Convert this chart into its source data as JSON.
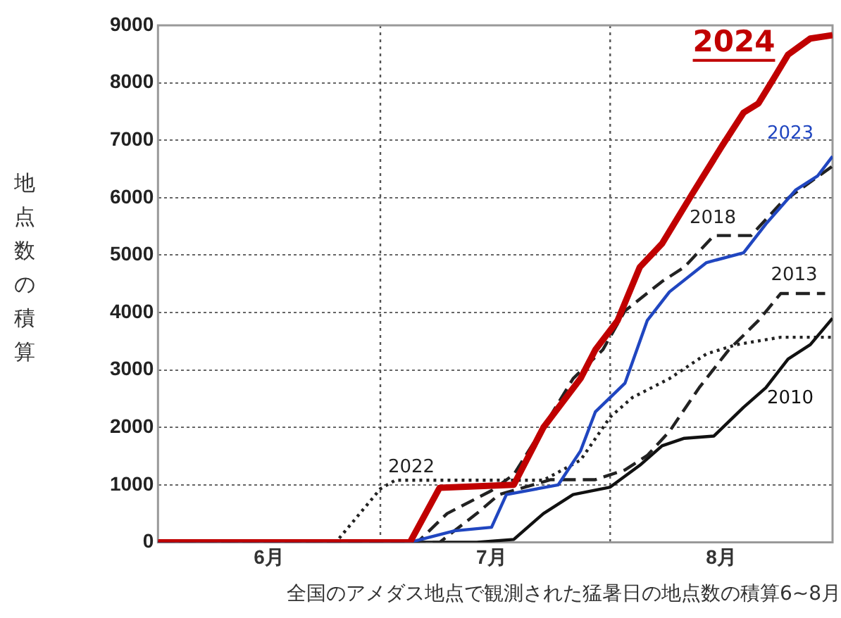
{
  "chart_data": {
    "type": "line",
    "title": "全国のアメダス地点で観測された猛暑日の地点数の積算6~8月",
    "ylabel": "地点数の積算",
    "xlim": [
      "--06-01",
      "--08-31"
    ],
    "xticks": [
      {
        "value": "--06-16",
        "label": "6月"
      },
      {
        "value": "--07-16",
        "label": "7月"
      },
      {
        "value": "--08-16",
        "label": "8月"
      }
    ],
    "ylim": [
      0,
      9000
    ],
    "yticks": [
      0,
      1000,
      2000,
      3000,
      4000,
      5000,
      6000,
      7000,
      8000,
      9000
    ],
    "grid": "y",
    "legend": false,
    "marker": "none",
    "ref_lines": [
      {
        "axis": "x",
        "value": "--07-01",
        "line_style": "dotted",
        "color": "#555555"
      },
      {
        "axis": "x",
        "value": "--08-01",
        "line_style": "dotted",
        "color": "#555555"
      }
    ],
    "series": [
      {
        "name": "2024",
        "color": "#c00000",
        "line_style": "solid",
        "x": [
          "--06-01",
          "--07-05",
          "--07-09",
          "--07-19",
          "--07-23",
          "--07-28",
          "--07-30",
          "--08-02",
          "--08-05",
          "--08-08",
          "--08-12",
          "--08-16",
          "--08-19",
          "--08-21",
          "--08-23",
          "--08-25",
          "--08-28",
          "--08-31"
        ],
        "values": [
          0,
          0,
          950,
          1000,
          2000,
          2850,
          3350,
          3860,
          4790,
          5200,
          6050,
          6880,
          7480,
          7640,
          8060,
          8490,
          8770,
          8830
        ]
      },
      {
        "name": "2023",
        "color": "#2046c0",
        "line_style": "solid",
        "x": [
          "--06-01",
          "--07-05",
          "--07-11",
          "--07-16",
          "--07-18",
          "--07-25",
          "--07-28",
          "--07-30",
          "--08-03",
          "--08-06",
          "--08-09",
          "--08-14",
          "--08-19",
          "--08-22",
          "--08-26",
          "--08-29",
          "--08-31"
        ],
        "values": [
          0,
          0,
          200,
          260,
          830,
          1000,
          1590,
          2270,
          2770,
          3860,
          4360,
          4870,
          5040,
          5540,
          6130,
          6380,
          6720
        ]
      },
      {
        "name": "2018",
        "color": "#222222",
        "line_style": "dashed",
        "x": [
          "--06-01",
          "--07-06",
          "--07-10",
          "--07-16",
          "--07-19",
          "--07-23",
          "--07-27",
          "--07-31",
          "--08-03",
          "--08-08",
          "--08-11",
          "--08-15",
          "--08-20",
          "--08-24",
          "--08-31"
        ],
        "values": [
          0,
          0,
          500,
          900,
          1180,
          2000,
          2850,
          3350,
          4030,
          4540,
          4790,
          5340,
          5340,
          5900,
          6550
        ]
      },
      {
        "name": "2013",
        "color": "#222222",
        "line_style": "dashed",
        "x": [
          "--06-01",
          "--07-09",
          "--07-14",
          "--07-17",
          "--07-24",
          "--07-30",
          "--08-03",
          "--08-06",
          "--08-09",
          "--08-13",
          "--08-17",
          "--08-21",
          "--08-24",
          "--08-30"
        ],
        "values": [
          0,
          0,
          500,
          830,
          1090,
          1090,
          1260,
          1510,
          1930,
          2690,
          3350,
          3860,
          4330,
          4330
        ]
      },
      {
        "name": "2010",
        "color": "#111111",
        "line_style": "solid",
        "x": [
          "--06-01",
          "--07-14",
          "--07-19",
          "--07-23",
          "--07-27",
          "--08-01",
          "--08-05",
          "--08-08",
          "--08-11",
          "--08-15",
          "--08-19",
          "--08-22",
          "--08-25",
          "--08-28",
          "--08-31"
        ],
        "values": [
          0,
          0,
          50,
          500,
          830,
          960,
          1340,
          1680,
          1810,
          1850,
          2350,
          2690,
          3190,
          3440,
          3900
        ]
      },
      {
        "name": "2022",
        "color": "#222222",
        "line_style": "dotted",
        "x": [
          "--06-01",
          "--06-25",
          "--07-01",
          "--07-03",
          "--07-23",
          "--07-28",
          "--08-01",
          "--08-04",
          "--08-09",
          "--08-14",
          "--08-18",
          "--08-24",
          "--08-31"
        ],
        "values": [
          0,
          0,
          930,
          1080,
          1080,
          1430,
          2180,
          2520,
          2850,
          3280,
          3440,
          3570,
          3570
        ]
      }
    ]
  }
}
